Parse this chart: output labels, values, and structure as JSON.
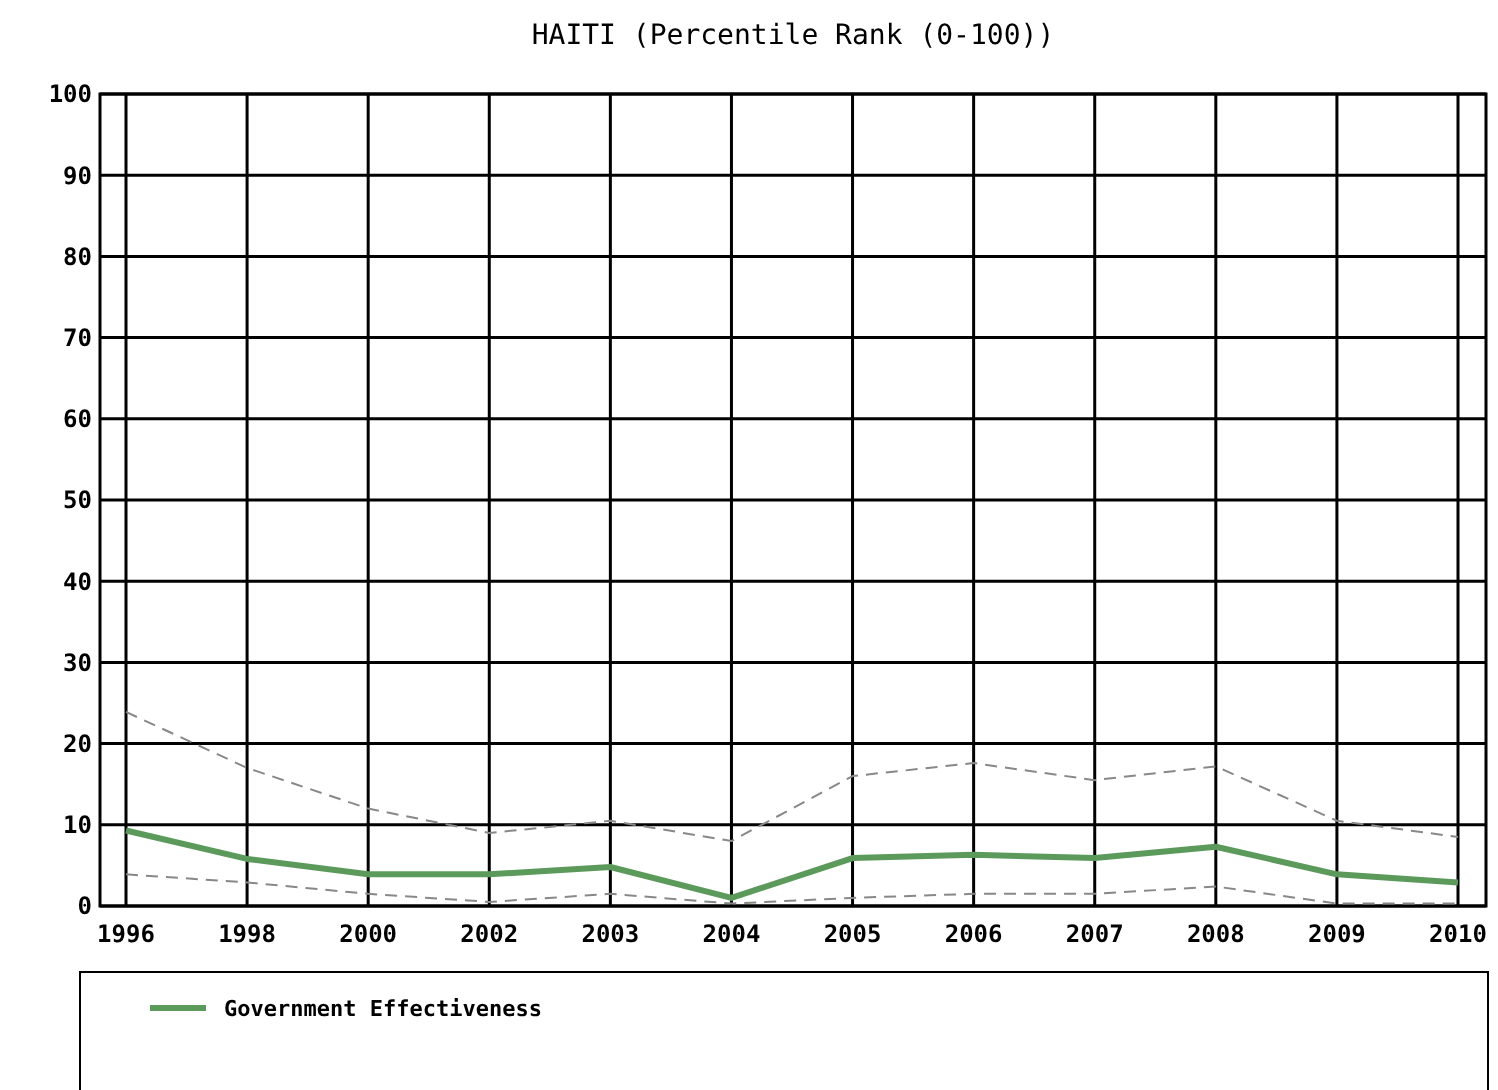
{
  "chart_data": {
    "type": "line",
    "title": "HAITI (Percentile Rank (0-100))",
    "categories": [
      "1996",
      "1998",
      "2000",
      "2002",
      "2003",
      "2004",
      "2005",
      "2006",
      "2007",
      "2008",
      "2009",
      "2010"
    ],
    "series": [
      {
        "name": "Government Effectiveness",
        "color": "#5c9a5c",
        "values": [
          9.3,
          5.8,
          3.9,
          3.9,
          4.8,
          1.0,
          5.9,
          6.3,
          5.9,
          7.3,
          3.9,
          2.9
        ]
      },
      {
        "color": "#888888",
        "line_style": "dashed",
        "values": [
          3.9,
          2.9,
          1.5,
          0.5,
          1.5,
          0.3,
          1.0,
          1.5,
          1.5,
          2.4,
          0.3,
          0.3
        ]
      },
      {
        "color": "#888888",
        "line_style": "dashed",
        "values": [
          23.9,
          17.0,
          12.0,
          9.0,
          10.5,
          8.0,
          16.0,
          17.6,
          15.5,
          17.2,
          10.5,
          8.5
        ]
      }
    ],
    "ylim": [
      0,
      100
    ],
    "yticks": [
      0,
      10,
      20,
      30,
      40,
      50,
      60,
      70,
      80,
      90,
      100
    ],
    "grid": true,
    "legend": "bottom",
    "marker": "none",
    "line_style": "solid"
  }
}
